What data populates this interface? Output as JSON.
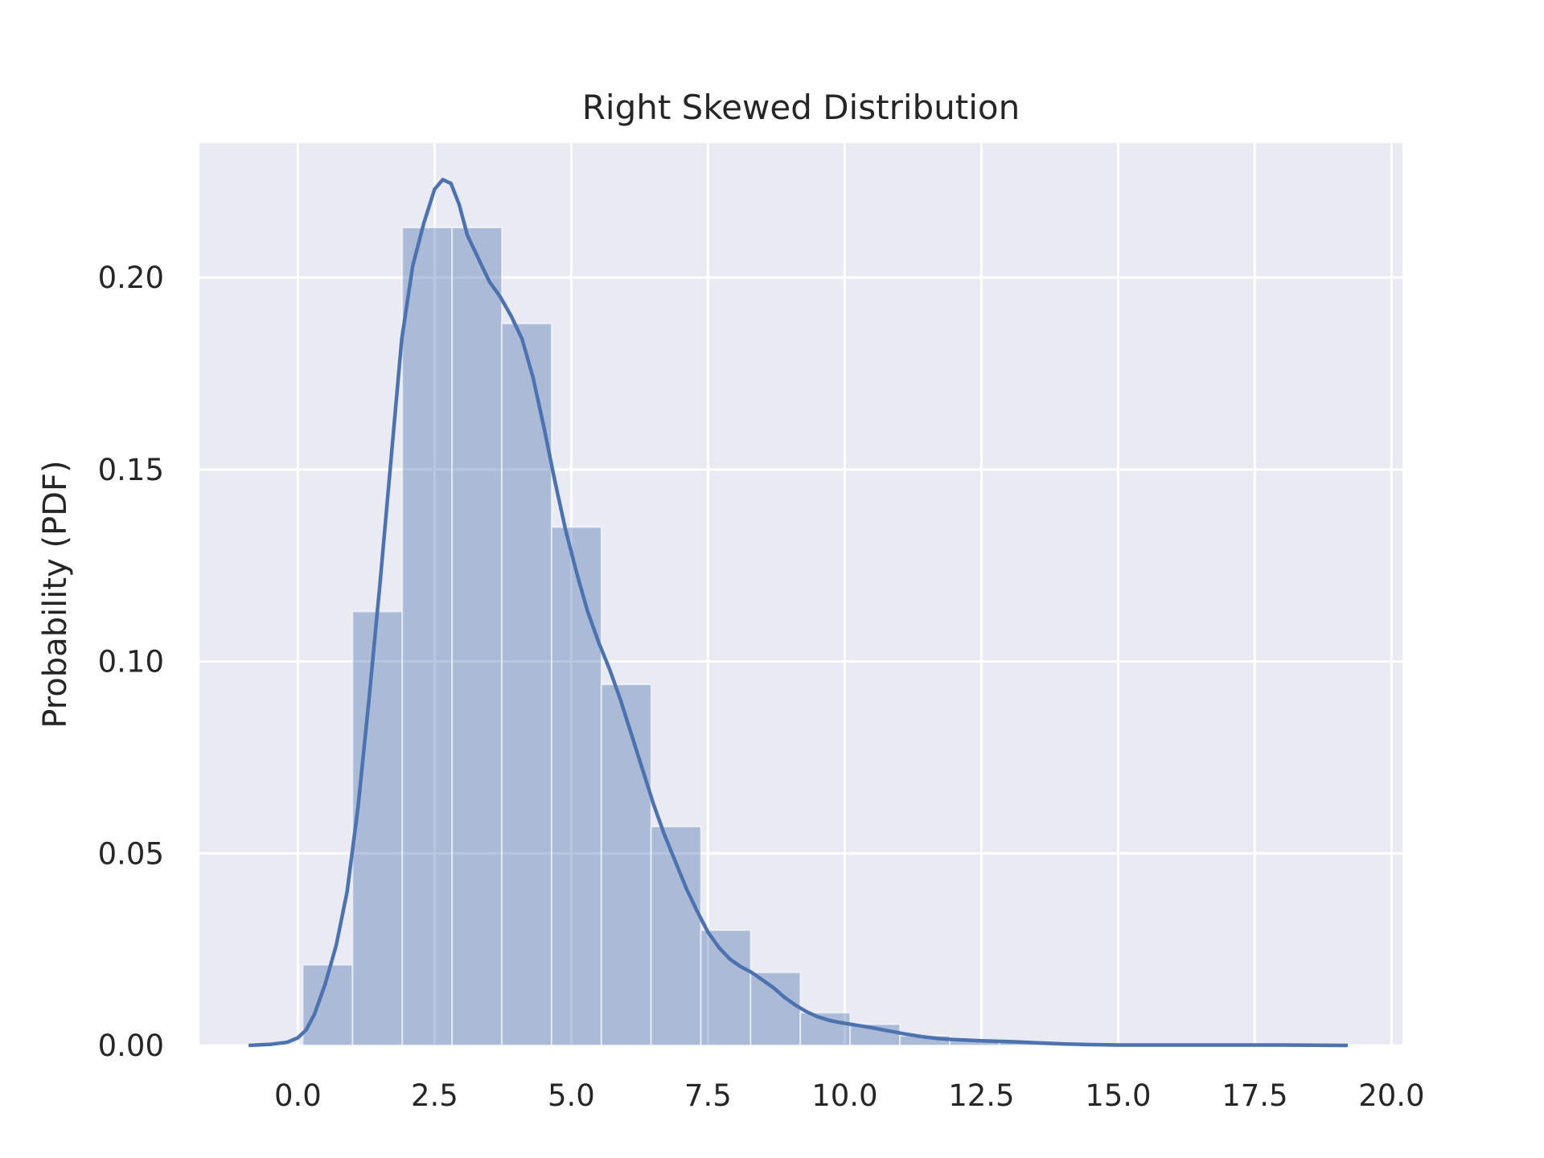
{
  "chart_data": {
    "type": "bar",
    "title": "Right Skewed Distribution",
    "xlabel": "",
    "ylabel": "Probability (PDF)",
    "xlim": [
      -1.8,
      20.2
    ],
    "ylim": [
      0,
      0.235
    ],
    "grid": true,
    "background_color": "#eaeaf2",
    "grid_color": "#ffffff",
    "bar_color": "#4c72b0",
    "bar_opacity": 0.4,
    "line_color": "#4c72b0",
    "x_ticks": [
      0.0,
      2.5,
      5.0,
      7.5,
      10.0,
      12.5,
      15.0,
      17.5,
      20.0
    ],
    "x_tick_labels": [
      "0.0",
      "2.5",
      "5.0",
      "7.5",
      "10.0",
      "12.5",
      "15.0",
      "17.5",
      "20.0"
    ],
    "y_ticks": [
      0.0,
      0.05,
      0.1,
      0.15,
      0.2
    ],
    "y_tick_labels": [
      "0.00",
      "0.05",
      "0.10",
      "0.15",
      "0.20"
    ],
    "histogram": {
      "bins": [
        {
          "x0": 0.09,
          "x1": 1.0,
          "value": 0.021
        },
        {
          "x0": 1.0,
          "x1": 1.91,
          "value": 0.113
        },
        {
          "x0": 1.91,
          "x1": 2.82,
          "value": 0.213
        },
        {
          "x0": 2.82,
          "x1": 3.73,
          "value": 0.213
        },
        {
          "x0": 3.73,
          "x1": 4.64,
          "value": 0.188
        },
        {
          "x0": 4.64,
          "x1": 5.55,
          "value": 0.135
        },
        {
          "x0": 5.55,
          "x1": 6.46,
          "value": 0.094
        },
        {
          "x0": 6.46,
          "x1": 7.37,
          "value": 0.057
        },
        {
          "x0": 7.37,
          "x1": 8.28,
          "value": 0.03
        },
        {
          "x0": 8.28,
          "x1": 9.19,
          "value": 0.019
        },
        {
          "x0": 9.19,
          "x1": 10.1,
          "value": 0.0085
        },
        {
          "x0": 10.1,
          "x1": 11.01,
          "value": 0.0055
        },
        {
          "x0": 11.01,
          "x1": 11.92,
          "value": 0.0025
        },
        {
          "x0": 11.92,
          "x1": 12.83,
          "value": 0.0012
        },
        {
          "x0": 12.83,
          "x1": 13.74,
          "value": 0.0008
        },
        {
          "x0": 13.74,
          "x1": 14.65,
          "value": 0.0004
        },
        {
          "x0": 14.65,
          "x1": 15.56,
          "value": 0.0002
        },
        {
          "x0": 15.56,
          "x1": 16.47,
          "value": 0.0001
        },
        {
          "x0": 16.47,
          "x1": 17.38,
          "value": 0.0001
        },
        {
          "x0": 17.38,
          "x1": 18.29,
          "value": 0.0001
        },
        {
          "x0": 18.29,
          "x1": 19.2,
          "value": 0.0001
        }
      ]
    },
    "kde": {
      "x": [
        -0.9,
        -0.5,
        -0.2,
        0.0,
        0.15,
        0.3,
        0.5,
        0.7,
        0.9,
        1.1,
        1.3,
        1.5,
        1.7,
        1.9,
        2.1,
        2.3,
        2.5,
        2.65,
        2.8,
        2.95,
        3.1,
        3.3,
        3.5,
        3.7,
        3.9,
        4.1,
        4.3,
        4.5,
        4.7,
        4.9,
        5.1,
        5.3,
        5.5,
        5.7,
        5.9,
        6.1,
        6.3,
        6.5,
        6.7,
        6.9,
        7.1,
        7.3,
        7.5,
        7.7,
        7.9,
        8.1,
        8.3,
        8.5,
        8.7,
        8.9,
        9.1,
        9.3,
        9.5,
        9.7,
        9.9,
        10.2,
        10.5,
        10.8,
        11.1,
        11.4,
        11.7,
        12.0,
        12.5,
        13.0,
        13.5,
        14.0,
        14.5,
        15.0,
        16.0,
        17.0,
        18.0,
        19.2
      ],
      "y": [
        0.0,
        0.0003,
        0.0008,
        0.002,
        0.004,
        0.008,
        0.016,
        0.026,
        0.04,
        0.062,
        0.09,
        0.12,
        0.152,
        0.184,
        0.203,
        0.214,
        0.223,
        0.2255,
        0.2245,
        0.219,
        0.211,
        0.205,
        0.199,
        0.195,
        0.19,
        0.184,
        0.174,
        0.161,
        0.147,
        0.134,
        0.123,
        0.113,
        0.105,
        0.098,
        0.09,
        0.081,
        0.072,
        0.063,
        0.055,
        0.048,
        0.041,
        0.035,
        0.0295,
        0.0255,
        0.0225,
        0.0205,
        0.019,
        0.017,
        0.015,
        0.0125,
        0.0105,
        0.0088,
        0.0075,
        0.0066,
        0.006,
        0.0053,
        0.0046,
        0.0038,
        0.003,
        0.0023,
        0.0018,
        0.0015,
        0.0012,
        0.001,
        0.0007,
        0.0004,
        0.0002,
        0.0001,
        0.0001,
        0.0001,
        0.0001,
        0.0
      ]
    }
  }
}
